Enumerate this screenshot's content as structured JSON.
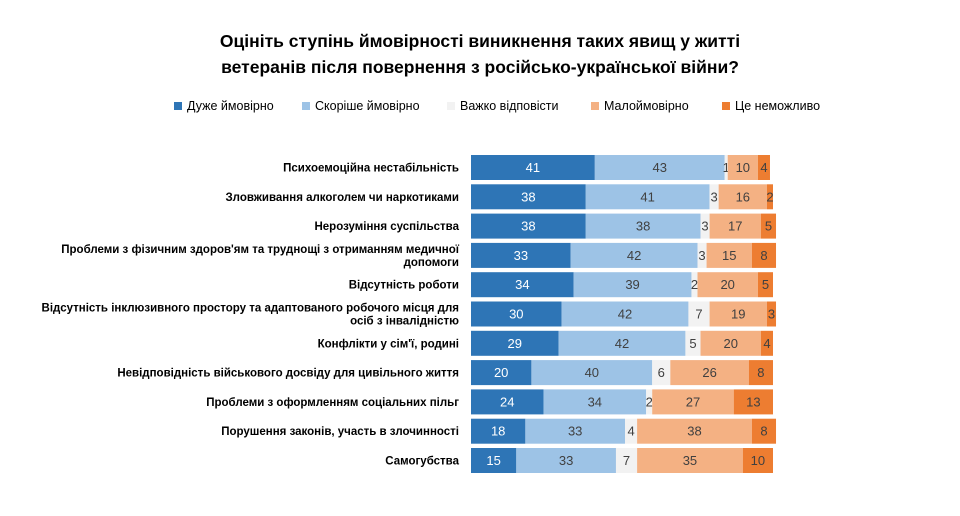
{
  "chart_data": {
    "type": "bar",
    "orientation": "horizontal",
    "stacked": true,
    "title": "Оцініть ступінь ймовірності виникнення таких явищ у житті ветеранів після повернення з російсько-української війни?",
    "title_lines": [
      "Оцініть ступінь ймовірності виникнення таких явищ у житті",
      "ветеранів після повернення з російсько-української війни?"
    ],
    "legend_position": "top",
    "grid": false,
    "xlim": [
      0,
      100
    ],
    "categories": [
      "Психоемоційна нестабільність",
      "Зловживання алкоголем чи наркотиками",
      "Нерозуміння суспільства",
      "Проблеми з фізичним здоров'ям та труднощі з отриманням медичної допомоги",
      "Відсутність роботи",
      "Відсутність інклюзивного простору та адаптованого робочого місця для осіб з інвалідністю",
      "Конфлікти у сім'ї, родині",
      "Невідповідність військового досвіду для цивільного життя",
      "Проблеми з оформленням соціальних пільг",
      "Порушення законів, участь в злочинності",
      "Самогубства"
    ],
    "category_lines": [
      [
        "Психоемоційна нестабільність"
      ],
      [
        "Зловживання алкоголем чи наркотиками"
      ],
      [
        "Нерозуміння суспільства"
      ],
      [
        "Проблеми з фізичним здоров'ям та труднощі з отриманням медичної",
        "допомоги"
      ],
      [
        "Відсутність роботи"
      ],
      [
        "Відсутність інклюзивного простору та адаптованого робочого місця для",
        "осіб з інвалідністю"
      ],
      [
        "Конфлікти у сім'ї, родині"
      ],
      [
        "Невідповідність військового досвіду для цивільного життя"
      ],
      [
        "Проблеми з оформленням соціальних пільг"
      ],
      [
        "Порушення законів, участь в злочинності"
      ],
      [
        "Самогубства"
      ]
    ],
    "series": [
      {
        "name": "Дуже ймовірно",
        "color": "#2e75b6",
        "label_color": "#ffffff",
        "values": [
          41,
          38,
          38,
          33,
          34,
          30,
          29,
          20,
          24,
          18,
          15
        ]
      },
      {
        "name": "Скоріше ймовірно",
        "color": "#9dc3e6",
        "label_color": "#404040",
        "values": [
          43,
          41,
          38,
          42,
          39,
          42,
          42,
          40,
          34,
          33,
          33
        ]
      },
      {
        "name": "Важко відповісти",
        "color": "#f2f2f2",
        "label_color": "#404040",
        "values": [
          1,
          3,
          3,
          3,
          2,
          7,
          5,
          6,
          2,
          4,
          7
        ]
      },
      {
        "name": "Малоймовірно",
        "color": "#f4b183",
        "label_color": "#404040",
        "values": [
          10,
          16,
          17,
          15,
          20,
          19,
          20,
          26,
          27,
          38,
          35
        ]
      },
      {
        "name": "Це неможливо",
        "color": "#ed7d31",
        "label_color": "#404040",
        "values": [
          4,
          2,
          5,
          8,
          5,
          3,
          4,
          8,
          13,
          8,
          10
        ]
      }
    ]
  }
}
